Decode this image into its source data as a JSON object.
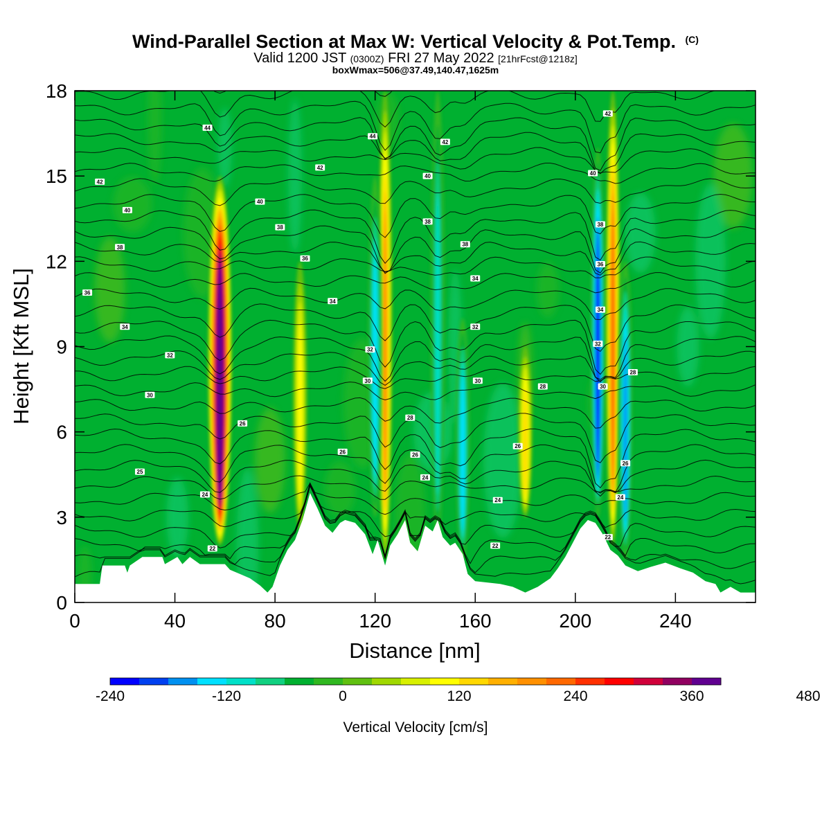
{
  "header": {
    "title": "Wind-Parallel Section at Max W: Vertical Velocity & Pot.Temp.",
    "copyright": "(C)",
    "valid_a": "Valid 1200 JST",
    "valid_z": "(0300Z)",
    "valid_b": "FRI 27 May 2022",
    "forecast": "[21hrFcst@1218z]",
    "boxinfo": "boxWmax=506@37.49,140.47,1625m"
  },
  "chart_data": {
    "type": "heatmap",
    "xlabel": "Distance [nm]",
    "ylabel": "Height [Kft MSL]",
    "xlim": [
      0,
      272
    ],
    "ylim": [
      0,
      18
    ],
    "xticks": [
      0,
      40,
      80,
      120,
      160,
      200,
      240
    ],
    "yticks": [
      0,
      3,
      6,
      9,
      12,
      15,
      18
    ],
    "fill_variable": "Vertical Velocity",
    "colorbar": {
      "title": "Vertical Velocity [cm/s]",
      "levels": [
        -240,
        -210,
        -180,
        -150,
        -120,
        -90,
        -60,
        -30,
        0,
        30,
        60,
        90,
        120,
        150,
        180,
        210,
        240,
        270,
        300,
        330,
        360,
        390,
        420,
        450,
        480,
        510,
        540
      ],
      "tick_labels": [
        "-240",
        "-120",
        "0",
        "120",
        "240",
        "360",
        "480"
      ],
      "tick_values": [
        -240,
        -120,
        0,
        120,
        240,
        360,
        480
      ],
      "colors": [
        "#0000ff",
        "#0040f0",
        "#0090f0",
        "#00e0ff",
        "#00e0c8",
        "#10d080",
        "#00b030",
        "#30b820",
        "#60c010",
        "#a0d800",
        "#d8f000",
        "#ffff00",
        "#ffd800",
        "#ffb000",
        "#ff9000",
        "#ff6800",
        "#ff3000",
        "#ff0000",
        "#d0003a",
        "#900060",
        "#600090"
      ]
    },
    "vertical_velocity_features": [
      {
        "x": 58,
        "z_bottom": 2.0,
        "z_top": 15.0,
        "w_max": 506
      },
      {
        "x": 124,
        "z_bottom": 1.5,
        "z_top": 18.0,
        "w_max": 230
      },
      {
        "x": 120,
        "z_bottom": 3.0,
        "z_top": 15.0,
        "w_max": -150
      },
      {
        "x": 90,
        "z_bottom": 2.5,
        "z_top": 12.0,
        "w_max": 130
      },
      {
        "x": 145,
        "z_bottom": 2.0,
        "z_top": 18.0,
        "w_max": -130
      },
      {
        "x": 155,
        "z_bottom": 1.5,
        "z_top": 10.0,
        "w_max": -150
      },
      {
        "x": 180,
        "z_bottom": 3.0,
        "z_top": 9.0,
        "w_max": 150
      },
      {
        "x": 209,
        "z_bottom": 3.0,
        "z_top": 16.0,
        "w_max": -240
      },
      {
        "x": 215,
        "z_bottom": 2.0,
        "z_top": 18.0,
        "w_max": 240
      },
      {
        "x": 220,
        "z_bottom": 1.5,
        "z_top": 12.0,
        "w_max": -200
      }
    ],
    "contour_variable": "Pot.Temp.",
    "contour_labels": [
      {
        "text": "44",
        "x": 53,
        "y": 16.7
      },
      {
        "text": "42",
        "x": 10,
        "y": 14.8
      },
      {
        "text": "42",
        "x": 98,
        "y": 15.3
      },
      {
        "text": "42",
        "x": 148,
        "y": 16.2
      },
      {
        "text": "42",
        "x": 213,
        "y": 17.2
      },
      {
        "text": "44",
        "x": 119,
        "y": 16.4
      },
      {
        "text": "40",
        "x": 21,
        "y": 13.8
      },
      {
        "text": "40",
        "x": 74,
        "y": 14.1
      },
      {
        "text": "40",
        "x": 141,
        "y": 15.0
      },
      {
        "text": "40",
        "x": 207,
        "y": 15.1
      },
      {
        "text": "38",
        "x": 18,
        "y": 12.5
      },
      {
        "text": "38",
        "x": 82,
        "y": 13.2
      },
      {
        "text": "38",
        "x": 141,
        "y": 13.4
      },
      {
        "text": "38",
        "x": 156,
        "y": 12.6
      },
      {
        "text": "38",
        "x": 210,
        "y": 13.3
      },
      {
        "text": "36",
        "x": 5,
        "y": 10.9
      },
      {
        "text": "36",
        "x": 92,
        "y": 12.1
      },
      {
        "text": "36",
        "x": 210,
        "y": 11.9
      },
      {
        "text": "34",
        "x": 20,
        "y": 9.7
      },
      {
        "text": "34",
        "x": 103,
        "y": 10.6
      },
      {
        "text": "34",
        "x": 160,
        "y": 11.4
      },
      {
        "text": "34",
        "x": 210,
        "y": 10.3
      },
      {
        "text": "32",
        "x": 38,
        "y": 8.7
      },
      {
        "text": "32",
        "x": 118,
        "y": 8.9
      },
      {
        "text": "32",
        "x": 160,
        "y": 9.7
      },
      {
        "text": "32",
        "x": 209,
        "y": 9.1
      },
      {
        "text": "30",
        "x": 30,
        "y": 7.3
      },
      {
        "text": "30",
        "x": 117,
        "y": 7.8
      },
      {
        "text": "30",
        "x": 161,
        "y": 7.8
      },
      {
        "text": "30",
        "x": 211,
        "y": 7.6
      },
      {
        "text": "28",
        "x": 134,
        "y": 6.5
      },
      {
        "text": "28",
        "x": 187,
        "y": 7.6
      },
      {
        "text": "28",
        "x": 223,
        "y": 8.1
      },
      {
        "text": "26",
        "x": 67,
        "y": 6.3
      },
      {
        "text": "26",
        "x": 107,
        "y": 5.3
      },
      {
        "text": "26",
        "x": 136,
        "y": 5.2
      },
      {
        "text": "26",
        "x": 177,
        "y": 5.5
      },
      {
        "text": "26",
        "x": 220,
        "y": 4.9
      },
      {
        "text": "25",
        "x": 26,
        "y": 4.6
      },
      {
        "text": "24",
        "x": 52,
        "y": 3.8
      },
      {
        "text": "24",
        "x": 140,
        "y": 4.4
      },
      {
        "text": "24",
        "x": 169,
        "y": 3.6
      },
      {
        "text": "24",
        "x": 218,
        "y": 3.7
      },
      {
        "text": "22",
        "x": 55,
        "y": 1.9
      },
      {
        "text": "22",
        "x": 168,
        "y": 2.0
      },
      {
        "text": "22",
        "x": 213,
        "y": 2.3
      }
    ],
    "terrain": [
      [
        0,
        0.65
      ],
      [
        10,
        0.65
      ],
      [
        11,
        1.3
      ],
      [
        20,
        1.3
      ],
      [
        21,
        1.05
      ],
      [
        22,
        1.3
      ],
      [
        27,
        1.6
      ],
      [
        35,
        1.6
      ],
      [
        36,
        1.35
      ],
      [
        41,
        1.6
      ],
      [
        43,
        1.35
      ],
      [
        46,
        1.6
      ],
      [
        50,
        1.35
      ],
      [
        60,
        1.35
      ],
      [
        62,
        1.15
      ],
      [
        66,
        1.0
      ],
      [
        70,
        0.85
      ],
      [
        74,
        0.6
      ],
      [
        77,
        0.35
      ],
      [
        79,
        0.55
      ],
      [
        82,
        1.3
      ],
      [
        85,
        1.85
      ],
      [
        88,
        2.2
      ],
      [
        91,
        2.9
      ],
      [
        94,
        3.85
      ],
      [
        97,
        3.3
      ],
      [
        100,
        2.7
      ],
      [
        103,
        2.45
      ],
      [
        106,
        2.8
      ],
      [
        108,
        2.9
      ],
      [
        112,
        2.8
      ],
      [
        116,
        2.4
      ],
      [
        119,
        1.7
      ],
      [
        121,
        2.2
      ],
      [
        124,
        1.3
      ],
      [
        126,
        2.0
      ],
      [
        129,
        2.4
      ],
      [
        132,
        2.9
      ],
      [
        134,
        2.1
      ],
      [
        137,
        1.8
      ],
      [
        140,
        2.7
      ],
      [
        143,
        2.5
      ],
      [
        145,
        2.9
      ],
      [
        147,
        2.3
      ],
      [
        150,
        2.0
      ],
      [
        152,
        2.1
      ],
      [
        155,
        1.7
      ],
      [
        157,
        1.0
      ],
      [
        160,
        0.75
      ],
      [
        165,
        0.7
      ],
      [
        170,
        0.65
      ],
      [
        175,
        0.55
      ],
      [
        180,
        0.35
      ],
      [
        185,
        0.55
      ],
      [
        190,
        0.85
      ],
      [
        193,
        1.2
      ],
      [
        196,
        1.6
      ],
      [
        199,
        2.1
      ],
      [
        202,
        2.6
      ],
      [
        205,
        2.9
      ],
      [
        208,
        2.8
      ],
      [
        211,
        2.4
      ],
      [
        214,
        1.85
      ],
      [
        217,
        1.65
      ],
      [
        220,
        1.3
      ],
      [
        225,
        1.1
      ],
      [
        230,
        1.25
      ],
      [
        236,
        1.4
      ],
      [
        242,
        1.2
      ],
      [
        247,
        1.05
      ],
      [
        252,
        0.75
      ],
      [
        256,
        0.65
      ],
      [
        258,
        0.35
      ],
      [
        262,
        0.55
      ],
      [
        266,
        0.35
      ],
      [
        272,
        0.35
      ]
    ]
  }
}
